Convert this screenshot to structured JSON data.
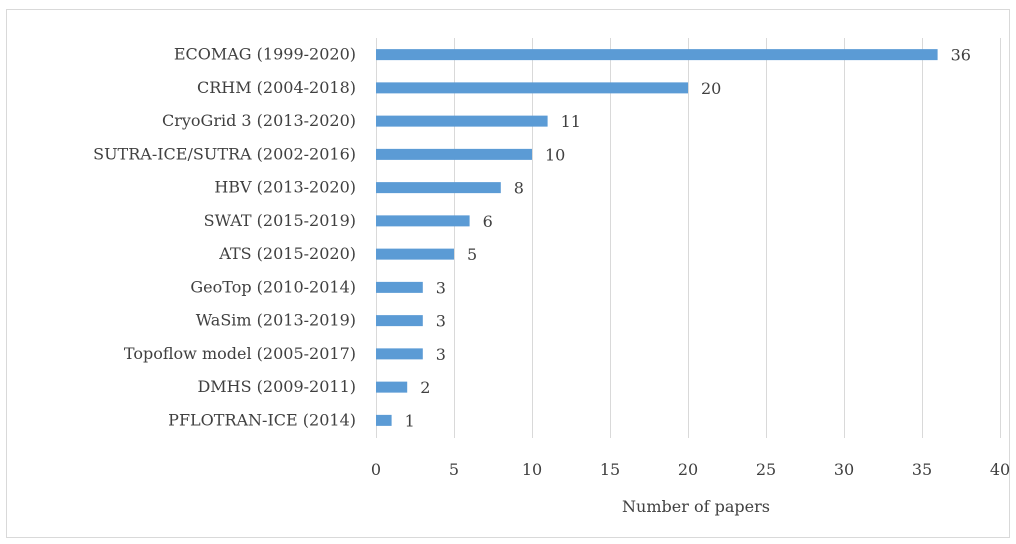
{
  "chart_data": {
    "type": "bar",
    "orientation": "horizontal",
    "categories": [
      "ECOMAG (1999-2020)",
      "CRHM (2004-2018)",
      "CryoGrid 3 (2013-2020)",
      "SUTRA-ICE/SUTRA (2002-2016)",
      "HBV (2013-2020)",
      "SWAT (2015-2019)",
      "ATS (2015-2020)",
      "GeoTop (2010-2014)",
      "WaSim (2013-2019)",
      "Topoflow model (2005-2017)",
      "DMHS (2009-2011)",
      "PFLOTRAN-ICE (2014)"
    ],
    "values": [
      36,
      20,
      11,
      10,
      8,
      6,
      5,
      3,
      3,
      3,
      2,
      1
    ],
    "xlabel": "Number of papers",
    "ylabel": "",
    "xlim": [
      0,
      40
    ],
    "xticks": [
      0,
      5,
      10,
      15,
      20,
      25,
      30,
      35,
      40
    ],
    "grid": "vertical",
    "data_labels": true,
    "bar_color": "#5b9bd5"
  }
}
